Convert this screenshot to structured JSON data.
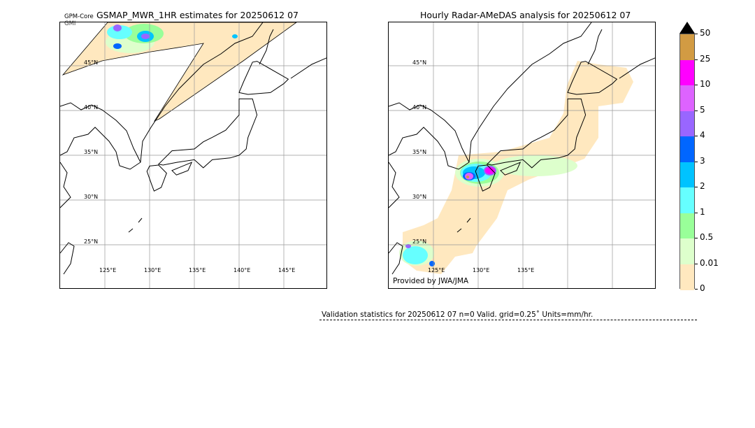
{
  "left_panel": {
    "title": "GSMAP_MWR_1HR estimates for 20250612 07",
    "sat_label": "GPM-Core",
    "sensor_label": "GMI",
    "lat_labels": [
      "45°N",
      "40°N",
      "35°N",
      "30°N",
      "25°N"
    ],
    "lon_labels": [
      "125°E",
      "130°E",
      "135°E",
      "140°E",
      "145°E"
    ]
  },
  "right_panel": {
    "title": "Hourly Radar-AMeDAS analysis for 20250612 07",
    "lat_labels": [
      "45°N",
      "40°N",
      "35°N",
      "30°N",
      "25°N"
    ],
    "lon_labels": [
      "125°E",
      "130°E",
      "135°E"
    ],
    "credit": "Provided by JWA/JMA"
  },
  "colorbar": {
    "labels": [
      "50",
      "25",
      "10",
      "5",
      "4",
      "3",
      "2",
      "1",
      "0.5",
      "0.01",
      "0"
    ],
    "colors": [
      "#d29b43",
      "#ff00ff",
      "#dd63ff",
      "#9966ff",
      "#0066ff",
      "#00c3ff",
      "#66ffff",
      "#99ff99",
      "#ddffcc",
      "#ffe8bf"
    ],
    "extend_color": "#000000"
  },
  "validation": {
    "text": "Validation statistics for 20250612 07  n=0 Valid. grid=0.25˚ Units=mm/hr."
  }
}
